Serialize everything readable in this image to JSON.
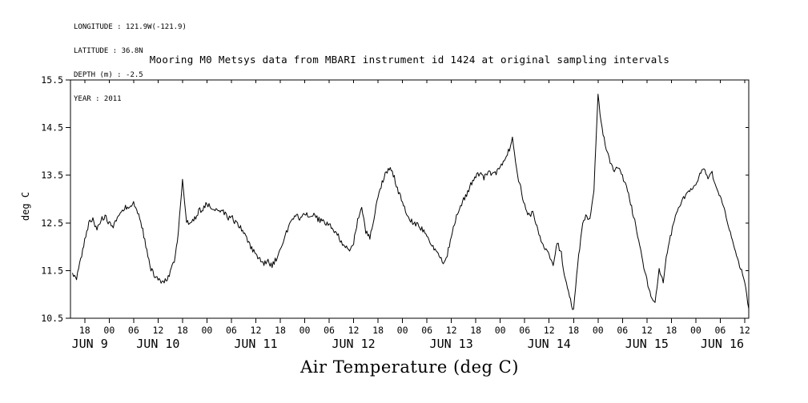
{
  "header_meta": [
    "LONGITUDE : 121.9W(-121.9)",
    "LATITUDE : 36.8N",
    "DEPTH (m) : -2.5",
    "YEAR : 2011"
  ],
  "chart_data": {
    "type": "line",
    "title": "Mooring M0 Metsys data from MBARI instrument id 1424 at original sampling intervals",
    "xlabel": "Air Temperature (deg C)",
    "ylabel": "deg C",
    "line_color": "#000000",
    "background_color": "#ffffff",
    "grid": false,
    "legend": false,
    "ylim": [
      10.5,
      15.5
    ],
    "yticks": [
      10.5,
      11.5,
      12.5,
      13.5,
      14.5,
      15.5
    ],
    "x_axis_unit": "hours since 2011-06-09 00:00",
    "xlim_hours": [
      14.5,
      181.0
    ],
    "xtick_first_hour": 18,
    "xtick_interval_hours": 6,
    "xtick_labels_cycle": [
      "18",
      "00",
      "06",
      "12"
    ],
    "days": [
      {
        "label": "JUN 9",
        "start_hour": 0
      },
      {
        "label": "JUN 10",
        "start_hour": 24
      },
      {
        "label": "JUN 11",
        "start_hour": 48
      },
      {
        "label": "JUN 12",
        "start_hour": 72
      },
      {
        "label": "JUN 13",
        "start_hour": 96
      },
      {
        "label": "JUN 14",
        "start_hour": 120
      },
      {
        "label": "JUN 15",
        "start_hour": 144
      },
      {
        "label": "JUN 16",
        "start_hour": 168
      }
    ],
    "noise_amplitude": 0.06,
    "series": [
      {
        "name": "air_temperature_deg_c",
        "start_hour": 15,
        "step_hours": 1,
        "values": [
          11.45,
          11.35,
          11.7,
          12.15,
          12.5,
          12.55,
          12.4,
          12.55,
          12.65,
          12.5,
          12.45,
          12.6,
          12.75,
          12.85,
          12.8,
          12.9,
          12.75,
          12.45,
          12.0,
          11.6,
          11.4,
          11.3,
          11.25,
          11.3,
          11.45,
          11.7,
          12.3,
          13.4,
          12.55,
          12.45,
          12.6,
          12.75,
          12.8,
          12.9,
          12.85,
          12.8,
          12.7,
          12.75,
          12.6,
          12.65,
          12.5,
          12.45,
          12.3,
          12.1,
          11.95,
          11.85,
          11.75,
          11.65,
          11.7,
          11.6,
          11.75,
          11.95,
          12.2,
          12.4,
          12.55,
          12.65,
          12.6,
          12.7,
          12.65,
          12.7,
          12.6,
          12.55,
          12.5,
          12.45,
          12.35,
          12.25,
          12.1,
          12.0,
          11.95,
          12.1,
          12.55,
          12.85,
          12.3,
          12.2,
          12.6,
          13.1,
          13.35,
          13.55,
          13.65,
          13.45,
          13.15,
          12.95,
          12.7,
          12.55,
          12.5,
          12.45,
          12.35,
          12.25,
          12.1,
          11.95,
          11.8,
          11.65,
          11.85,
          12.2,
          12.55,
          12.8,
          13.0,
          13.15,
          13.35,
          13.5,
          13.55,
          13.45,
          13.6,
          13.5,
          13.55,
          13.65,
          13.8,
          14.0,
          14.25,
          13.6,
          13.25,
          12.85,
          12.65,
          12.7,
          12.45,
          12.15,
          11.95,
          11.8,
          11.6,
          12.1,
          11.85,
          11.3,
          10.95,
          10.65,
          11.6,
          12.35,
          12.7,
          12.55,
          13.2,
          15.15,
          14.5,
          14.05,
          13.75,
          13.6,
          13.65,
          13.45,
          13.3,
          12.9,
          12.55,
          12.1,
          11.65,
          11.3,
          10.95,
          10.8,
          11.55,
          11.3,
          11.9,
          12.3,
          12.6,
          12.85,
          13.0,
          13.15,
          13.25,
          13.35,
          13.5,
          13.65,
          13.45,
          13.55,
          13.3,
          13.05,
          12.75,
          12.45,
          12.1,
          11.85,
          11.55,
          11.3,
          10.7
        ]
      }
    ]
  }
}
